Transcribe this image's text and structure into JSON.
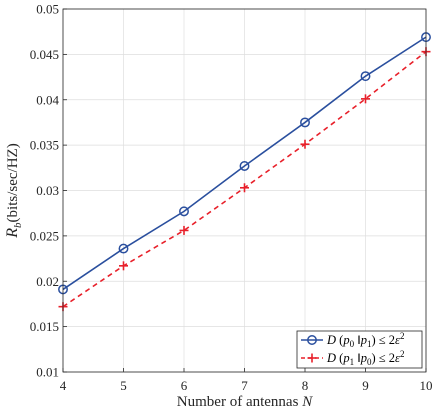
{
  "chart_data": {
    "type": "line",
    "x": [
      4,
      5,
      6,
      7,
      8,
      9,
      10
    ],
    "series": [
      {
        "name": "D (p0 ‖p1) ≤ 2ε²",
        "label_parts": {
          "fn": "D",
          "arg_a": "p",
          "sub_a": "0",
          "arg_b": "p",
          "sub_b": "1",
          "op": "≤ 2",
          "eps": "ε",
          "exp": "2"
        },
        "values": [
          0.0191,
          0.0236,
          0.0277,
          0.0327,
          0.0375,
          0.0426,
          0.0469
        ],
        "color": "#2a4f9e",
        "line_style": "solid",
        "marker": "circle"
      },
      {
        "name": "D (p1 ‖p0) ≤ 2ε²",
        "label_parts": {
          "fn": "D",
          "arg_a": "p",
          "sub_a": "1",
          "arg_b": "p",
          "sub_b": "0",
          "op": "≤ 2",
          "eps": "ε",
          "exp": "2"
        },
        "values": [
          0.0172,
          0.0217,
          0.0256,
          0.0303,
          0.0351,
          0.0401,
          0.0453
        ],
        "color": "#e8202a",
        "line_style": "dashed",
        "marker": "plus"
      }
    ],
    "xlabel_text": "Number of antennas",
    "xlabel_var": "N",
    "ylabel_main": "R",
    "ylabel_sub": "b",
    "ylabel_units": "(bits/sec/HZ)",
    "xlim": [
      4,
      10
    ],
    "ylim": [
      0.01,
      0.05
    ],
    "xticks": [
      "4",
      "5",
      "6",
      "7",
      "8",
      "9",
      "10"
    ],
    "yticks": [
      "0.01",
      "0.015",
      "0.02",
      "0.025",
      "0.03",
      "0.035",
      "0.04",
      "0.045",
      "0.05"
    ],
    "grid": true,
    "legend_position": "bottom-right"
  }
}
